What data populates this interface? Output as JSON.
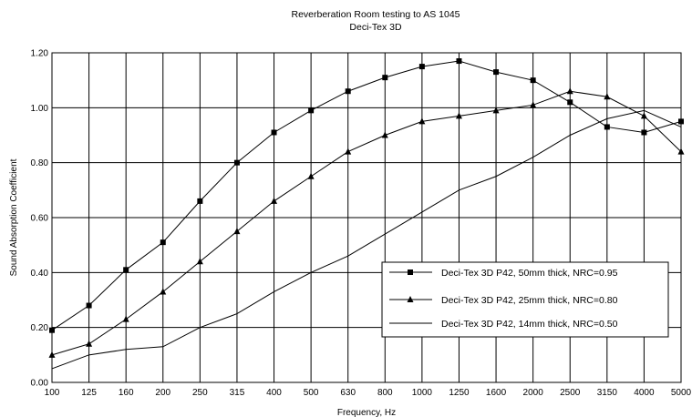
{
  "chart_data": {
    "type": "line",
    "title": "Reverberation Room testing to AS 1045",
    "subtitle": "Deci-Tex 3D",
    "xlabel": "Frequency, Hz",
    "ylabel": "Sound Absorption Coefficient",
    "x_scale": "categorical",
    "categories": [
      "100",
      "125",
      "160",
      "200",
      "250",
      "315",
      "400",
      "500",
      "630",
      "800",
      "1000",
      "1250",
      "1600",
      "2000",
      "2500",
      "3150",
      "4000",
      "5000"
    ],
    "y_ticks": [
      "0.00",
      "0.20",
      "0.40",
      "0.60",
      "0.80",
      "1.00",
      "1.20"
    ],
    "ylim": [
      0,
      1.2
    ],
    "grid": true,
    "legend_position": "bottom-right",
    "series": [
      {
        "name": "Deci-Tex 3D P42, 50mm thick, NRC=0.95",
        "marker": "square",
        "values": [
          0.19,
          0.28,
          0.41,
          0.51,
          0.66,
          0.8,
          0.91,
          0.99,
          1.06,
          1.11,
          1.15,
          1.17,
          1.13,
          1.1,
          1.02,
          0.93,
          0.91,
          0.95
        ]
      },
      {
        "name": "Deci-Tex 3D P42, 25mm thick, NRC=0.80",
        "marker": "triangle",
        "values": [
          0.1,
          0.14,
          0.23,
          0.33,
          0.44,
          0.55,
          0.66,
          0.75,
          0.84,
          0.9,
          0.95,
          0.97,
          0.99,
          1.01,
          1.06,
          1.04,
          0.97,
          0.84
        ]
      },
      {
        "name": "Deci-Tex 3D P42, 14mm thick, NRC=0.50",
        "marker": "none",
        "values": [
          0.05,
          0.1,
          0.12,
          0.13,
          0.2,
          0.25,
          0.33,
          0.4,
          0.46,
          0.54,
          0.62,
          0.7,
          0.75,
          0.82,
          0.9,
          0.96,
          0.99,
          0.93
        ]
      }
    ]
  }
}
